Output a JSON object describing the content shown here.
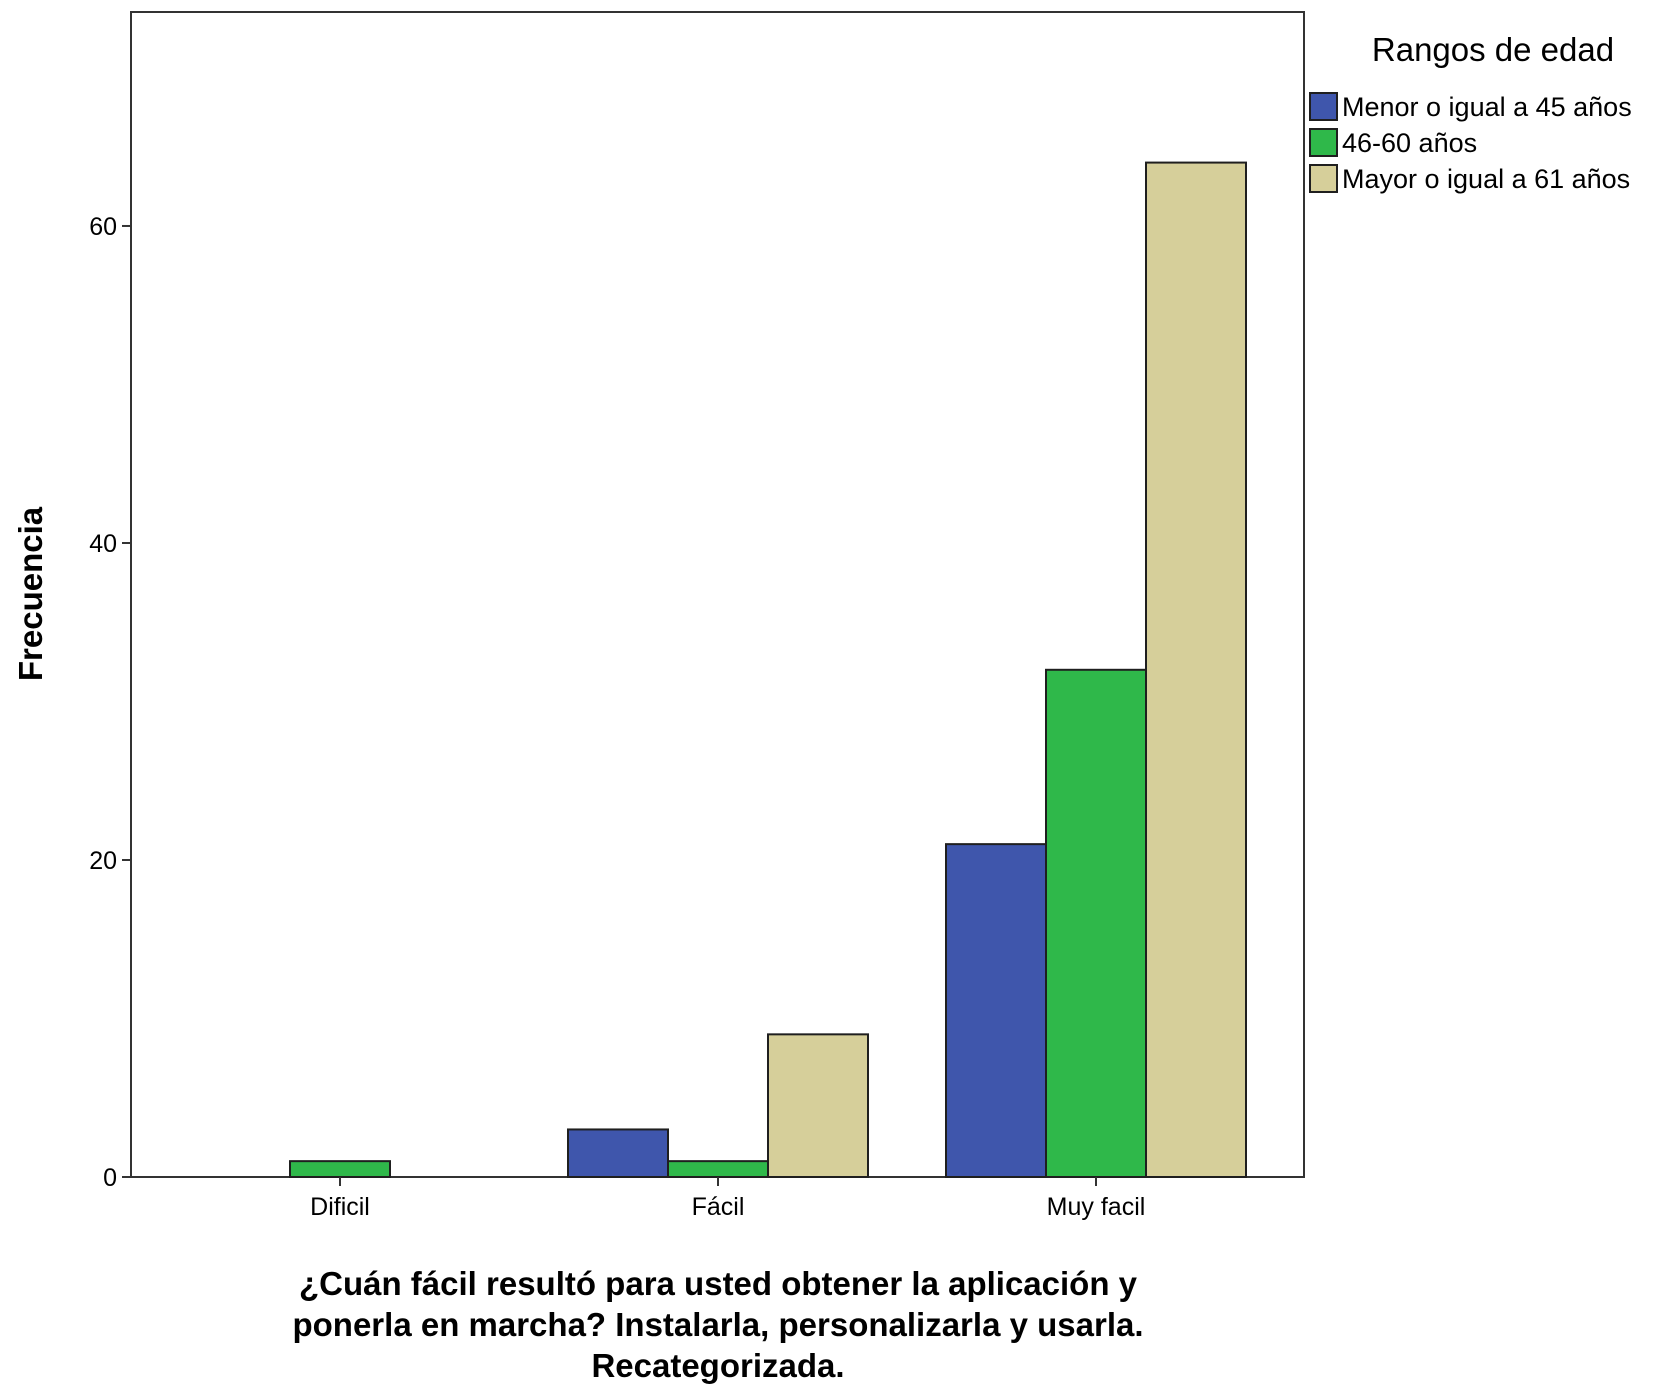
{
  "chart_data": {
    "type": "bar",
    "title": "",
    "xlabel_lines": [
      "¿Cuán fácil resultó para usted obtener la aplicación y",
      "ponerla en marcha? Instalarla, personalizarla y usarla.",
      "Recategorizada."
    ],
    "ylabel": "Frecuencia",
    "categories": [
      "Dificil",
      "Fácil",
      "Muy facil"
    ],
    "series": [
      {
        "name": "Menor o igual a 45 años",
        "color": "#3f56ac",
        "values": [
          0,
          3,
          21
        ]
      },
      {
        "name": "46-60 años",
        "color": "#2fb84a",
        "values": [
          1,
          1,
          32
        ]
      },
      {
        "name": "Mayor o igual a 61 años",
        "color": "#d6cf9a",
        "values": [
          0,
          9,
          64
        ]
      }
    ],
    "ylim": [
      0,
      73.5
    ],
    "yticks": [
      0,
      20,
      40,
      60
    ],
    "grid": false,
    "legend": {
      "title": "Rangos de edad",
      "position": "right-top"
    }
  }
}
